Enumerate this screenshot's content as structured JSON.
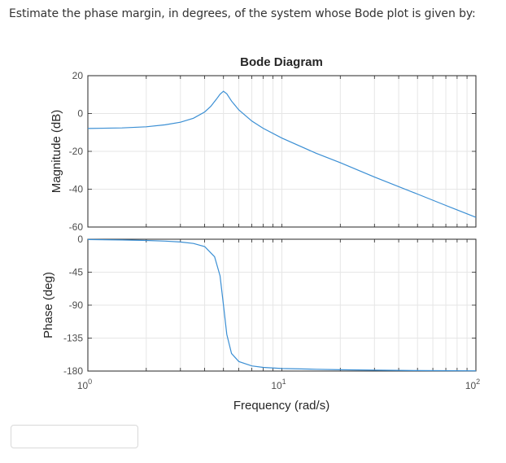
{
  "question": {
    "text": "Estimate the phase margin, in degrees, of the system whose Bode plot is given by:"
  },
  "answer": {
    "value": "",
    "placeholder": ""
  },
  "colors": {
    "line": "#3b8fd4",
    "axis": "#262626",
    "grid": "#e6e6e6"
  },
  "chart_data": [
    {
      "type": "line",
      "title": "Bode Diagram",
      "ylabel": "Magnitude (dB)",
      "xlabel": "",
      "xscale": "log",
      "xlim": [
        1,
        100
      ],
      "ylim": [
        -60,
        20
      ],
      "yticks": [
        "20",
        "0",
        "-20",
        "-40",
        "-60"
      ],
      "ytick_values": [
        20,
        0,
        -20,
        -40,
        -60
      ],
      "grid": true,
      "x": [
        1,
        1.5,
        2,
        2.5,
        3,
        3.5,
        4,
        4.3,
        4.6,
        4.8,
        5.0,
        5.2,
        5.5,
        6,
        7,
        8,
        10,
        15,
        20,
        30,
        50,
        70,
        100
      ],
      "values": [
        -7.9,
        -7.6,
        -7.0,
        -6.0,
        -4.6,
        -2.5,
        0.8,
        3.8,
        7.6,
        10.2,
        11.8,
        10.4,
        6.6,
        1.9,
        -4.0,
        -7.8,
        -13.0,
        -21.0,
        -26.0,
        -33.6,
        -42.6,
        -48.6,
        -54.9
      ]
    },
    {
      "type": "line",
      "title": "",
      "ylabel": "Phase (deg)",
      "xlabel": "Frequency (rad/s)",
      "xscale": "log",
      "xlim": [
        1,
        100
      ],
      "ylim": [
        -180,
        0
      ],
      "yticks": [
        "0",
        "-45",
        "-90",
        "-135",
        "-180"
      ],
      "ytick_values": [
        0,
        -45,
        -90,
        -135,
        -180
      ],
      "xticks": [
        1,
        10,
        100
      ],
      "xtick_base": "10",
      "xtick_exponents": [
        "0",
        "1",
        "2"
      ],
      "grid": true,
      "x": [
        1,
        1.5,
        2,
        2.5,
        3,
        3.5,
        4,
        4.5,
        4.8,
        5.0,
        5.2,
        5.5,
        6,
        7,
        8,
        10,
        15,
        20,
        30,
        50,
        100
      ],
      "values": [
        -0.5,
        -1.0,
        -1.7,
        -2.6,
        -3.8,
        -5.8,
        -10,
        -24,
        -50,
        -90,
        -130,
        -156,
        -167,
        -173,
        -175,
        -176.5,
        -177.6,
        -178.2,
        -178.8,
        -179.3,
        -179.7
      ]
    }
  ]
}
